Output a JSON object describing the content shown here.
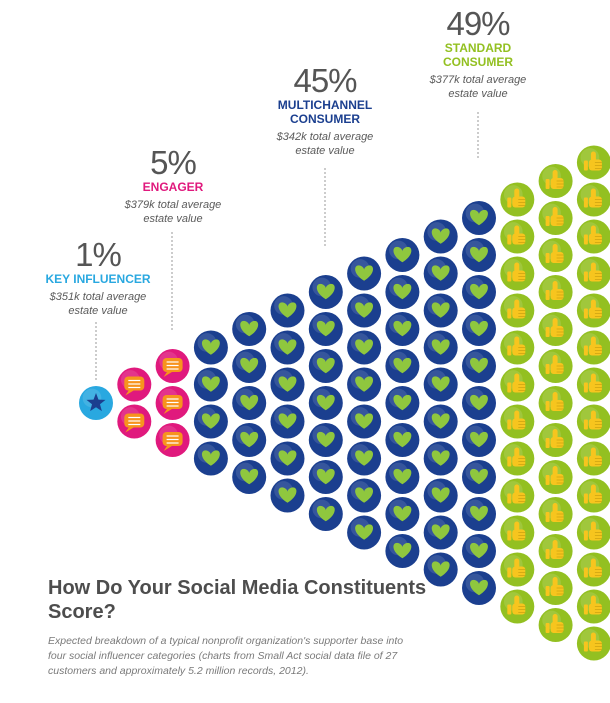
{
  "chart_data": {
    "type": "pictograph",
    "title": "How Do Your Social Media Constituents Score?",
    "caption": "Expected breakdown of a typical nonprofit organization's supporter base into four social influencer categories (charts from Small Act social data file of 27 customers and approximately 5.2 million records, 2012).",
    "categories": [
      "KEY INFLUENCER",
      "ENGAGER",
      "MULTICHANNEL CONSUMER",
      "STANDARD CONSUMER"
    ],
    "category_lines": [
      [
        "KEY INFLUENCER"
      ],
      [
        "ENGAGER"
      ],
      [
        "MULTICHANNEL",
        "CONSUMER"
      ],
      [
        "STANDARD",
        "CONSUMER"
      ]
    ],
    "percentages": [
      1,
      5,
      45,
      49
    ],
    "percent_labels": [
      "1%",
      "5%",
      "45%",
      "49%"
    ],
    "values": [
      "$351k total average estate value",
      "$379k total average estate value",
      "$342k total average estate value",
      "$377k total average estate value"
    ],
    "value_lines": [
      [
        "$351k total average",
        "estate value"
      ],
      [
        "$379k total average",
        "estate value"
      ],
      [
        "$342k total average",
        "estate value"
      ],
      [
        "$377k total average",
        "estate value"
      ]
    ],
    "icons": [
      "star-icon",
      "speech-bubble-icon",
      "heart-icon",
      "thumbs-up-icon"
    ],
    "colors": {
      "key_influencer": "#29a8e0",
      "engager": "#e0197d",
      "multichannel": "#1b3f8f",
      "standard": "#93c021",
      "heart": "#8fc73e",
      "bubble": "#f7941d",
      "star": "#1b3f8f",
      "thumb": "#f7c51e"
    },
    "column_icon_counts": [
      {
        "category": "KEY INFLUENCER",
        "counts": [
          1
        ]
      },
      {
        "category": "ENGAGER",
        "counts": [
          2,
          3
        ]
      },
      {
        "category": "MULTICHANNEL CONSUMER",
        "counts": [
          4,
          5,
          6,
          7,
          8,
          9,
          10,
          11
        ]
      },
      {
        "category": "STANDARD CONSUMER",
        "counts": [
          12,
          13,
          14
        ]
      }
    ]
  }
}
